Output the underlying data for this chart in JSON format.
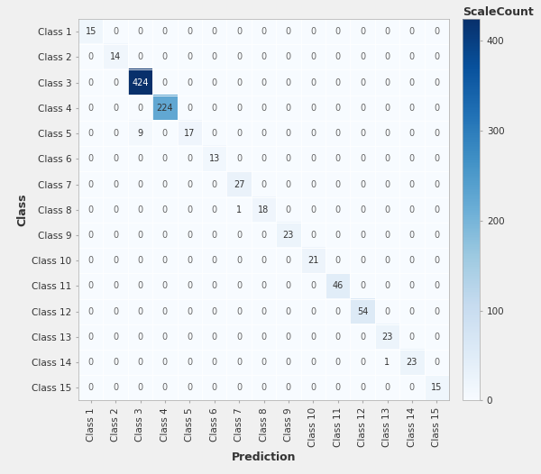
{
  "matrix": [
    [
      15,
      0,
      0,
      0,
      0,
      0,
      0,
      0,
      0,
      0,
      0,
      0,
      0,
      0,
      0
    ],
    [
      0,
      14,
      0,
      0,
      0,
      0,
      0,
      0,
      0,
      0,
      0,
      0,
      0,
      0,
      0
    ],
    [
      0,
      0,
      424,
      0,
      0,
      0,
      0,
      0,
      0,
      0,
      0,
      0,
      0,
      0,
      0
    ],
    [
      0,
      0,
      0,
      224,
      0,
      0,
      0,
      0,
      0,
      0,
      0,
      0,
      0,
      0,
      0
    ],
    [
      0,
      0,
      9,
      0,
      17,
      0,
      0,
      0,
      0,
      0,
      0,
      0,
      0,
      0,
      0
    ],
    [
      0,
      0,
      0,
      0,
      0,
      13,
      0,
      0,
      0,
      0,
      0,
      0,
      0,
      0,
      0
    ],
    [
      0,
      0,
      0,
      0,
      0,
      0,
      27,
      0,
      0,
      0,
      0,
      0,
      0,
      0,
      0
    ],
    [
      0,
      0,
      0,
      0,
      0,
      0,
      1,
      18,
      0,
      0,
      0,
      0,
      0,
      0,
      0
    ],
    [
      0,
      0,
      0,
      0,
      0,
      0,
      0,
      0,
      23,
      0,
      0,
      0,
      0,
      0,
      0
    ],
    [
      0,
      0,
      0,
      0,
      0,
      0,
      0,
      0,
      0,
      21,
      0,
      0,
      0,
      0,
      0
    ],
    [
      0,
      0,
      0,
      0,
      0,
      0,
      0,
      0,
      0,
      0,
      46,
      0,
      0,
      0,
      0
    ],
    [
      0,
      0,
      0,
      0,
      0,
      0,
      0,
      0,
      0,
      0,
      0,
      54,
      0,
      0,
      0
    ],
    [
      0,
      0,
      0,
      0,
      0,
      0,
      0,
      0,
      0,
      0,
      0,
      0,
      23,
      0,
      0
    ],
    [
      0,
      0,
      0,
      0,
      0,
      0,
      0,
      0,
      0,
      0,
      0,
      0,
      1,
      23,
      0
    ],
    [
      0,
      0,
      0,
      0,
      0,
      0,
      0,
      0,
      0,
      0,
      0,
      0,
      0,
      0,
      15
    ]
  ],
  "class_labels": [
    "Class 1",
    "Class 2",
    "Class 3",
    "Class 4",
    "Class 5",
    "Class 6",
    "Class 7",
    "Class 8",
    "Class 9",
    "Class 10",
    "Class 11",
    "Class 12",
    "Class 13",
    "Class 14",
    "Class 15"
  ],
  "xlabel": "Prediction",
  "ylabel": "Class",
  "colorbar_label": "ScaleCount",
  "vmin": 0,
  "vmax": 424,
  "colorbar_ticks": [
    0,
    100,
    200,
    300,
    400
  ],
  "cmap": "Blues",
  "label_fontsize": 9,
  "tick_fontsize": 7.5,
  "cell_fontsize": 7,
  "fig_facecolor": "#f0f0f0",
  "bg_color": "#ddeeff"
}
